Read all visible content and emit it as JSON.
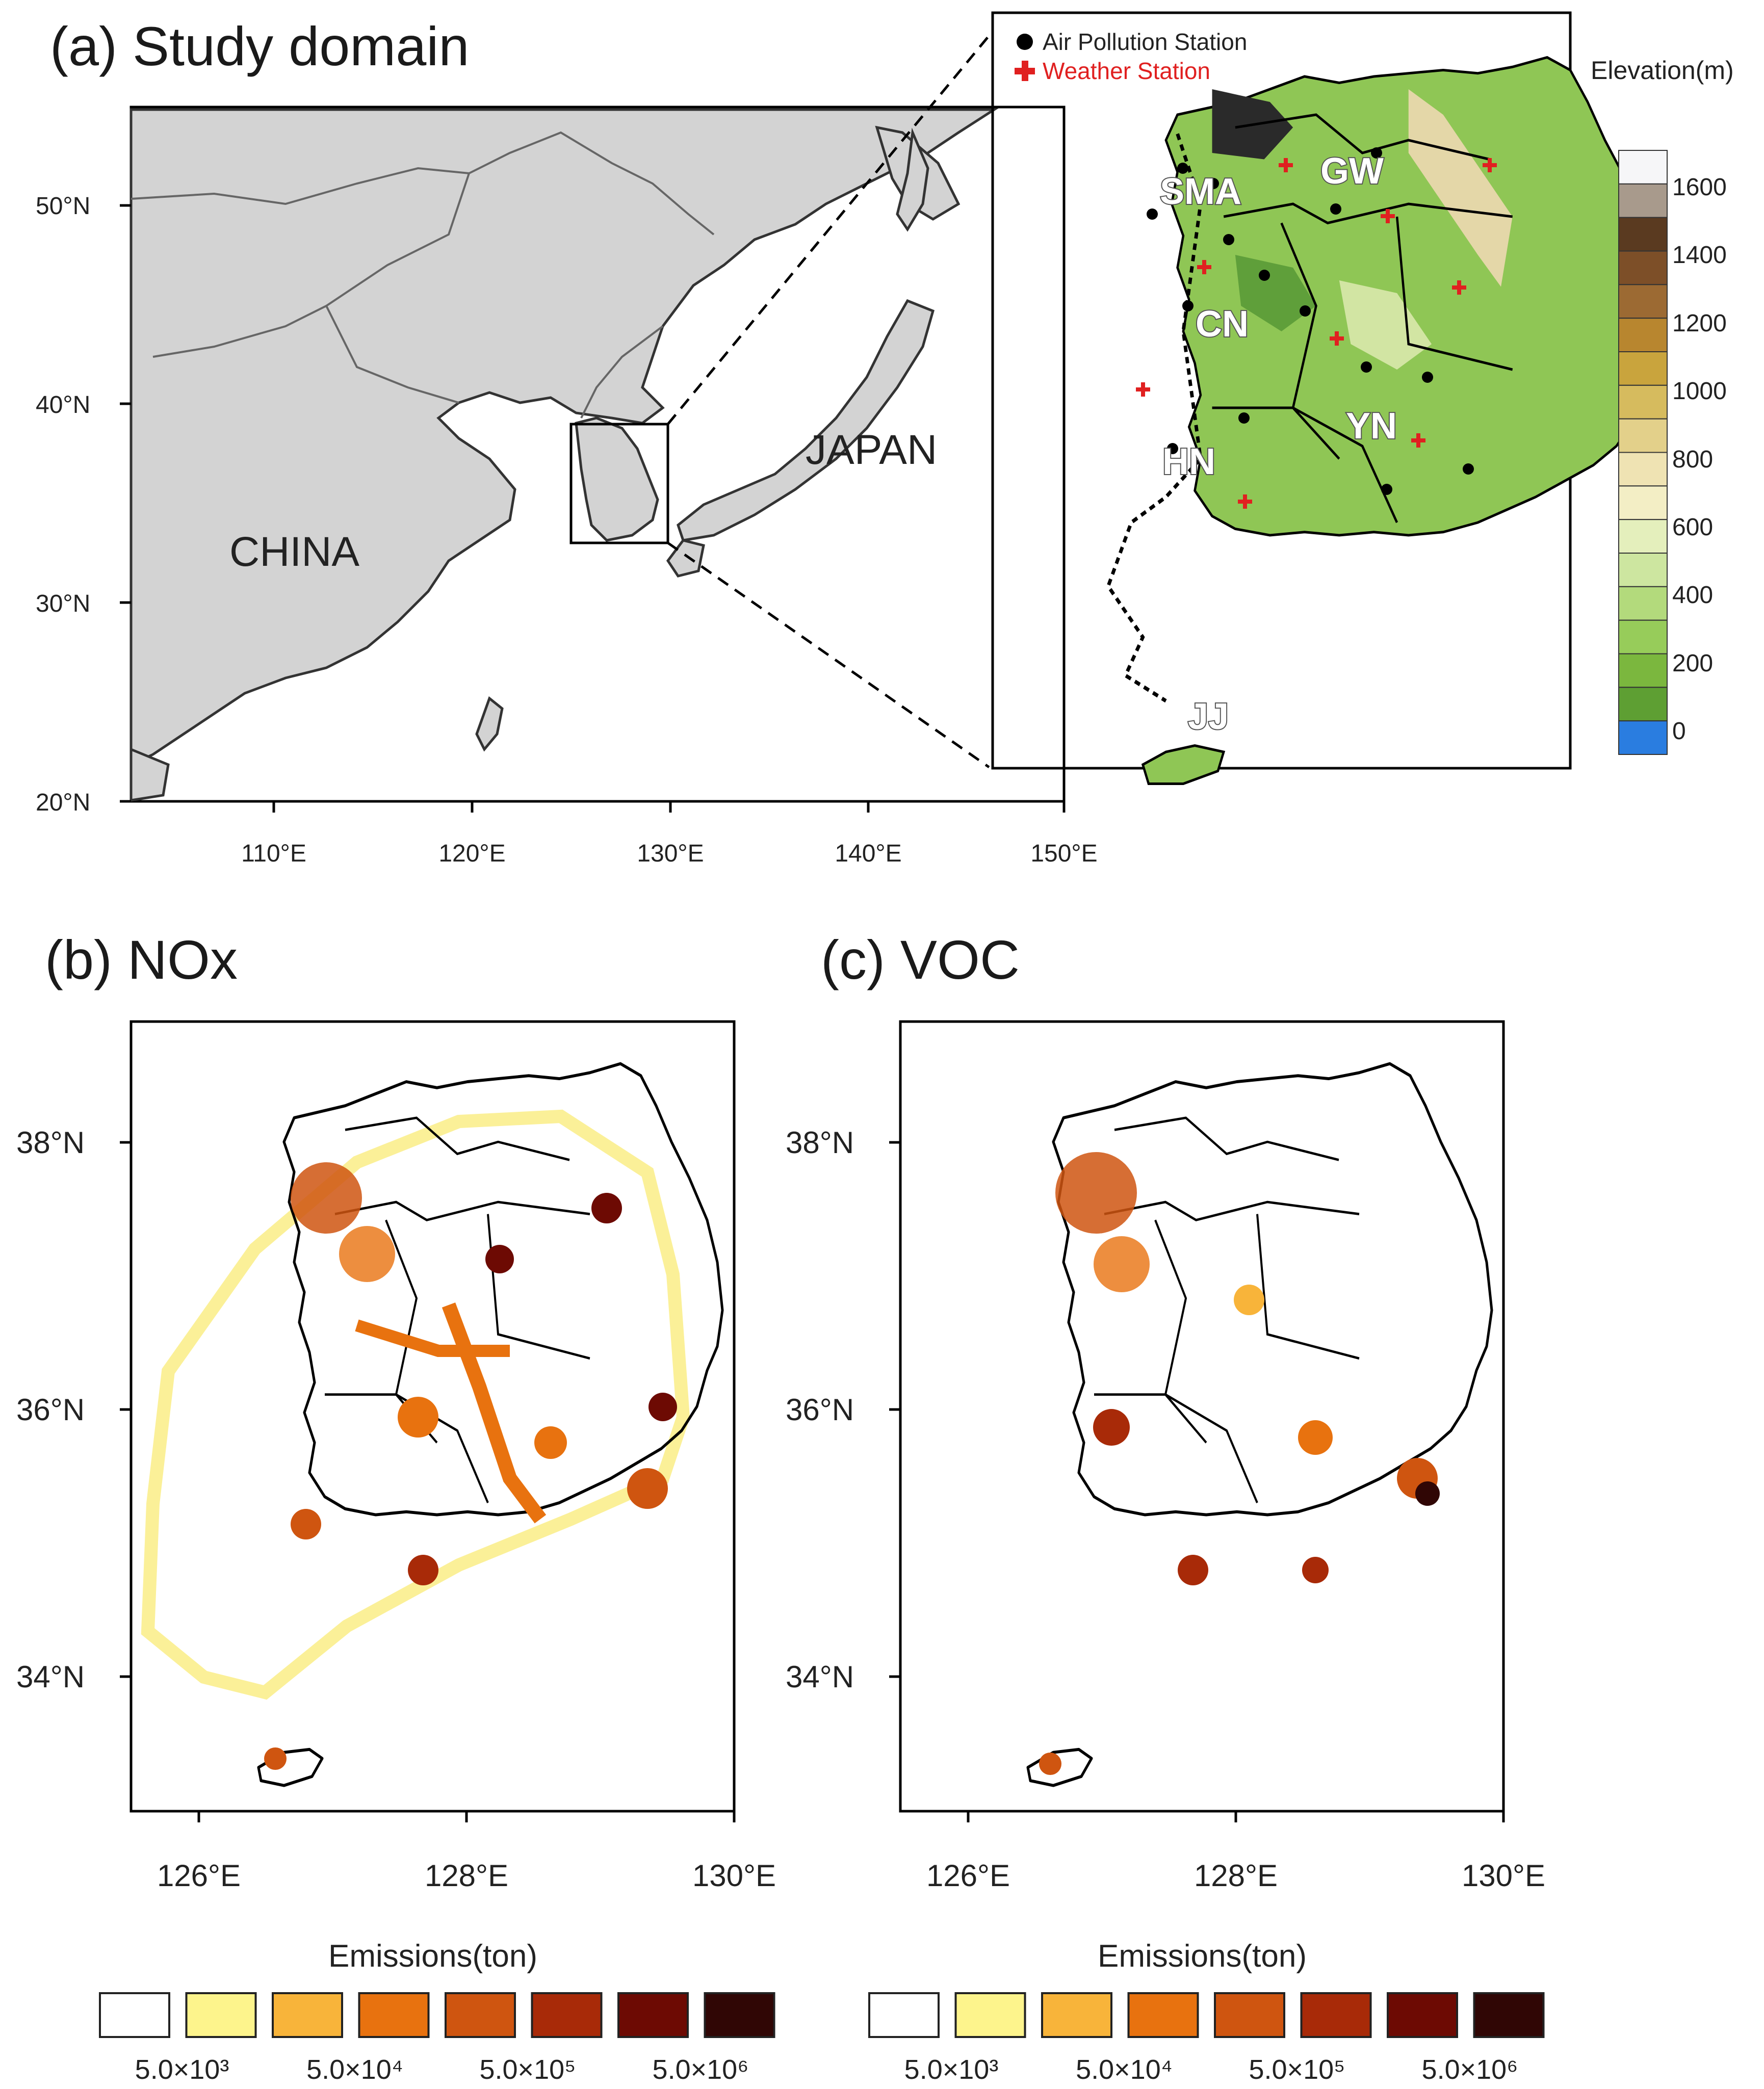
{
  "panels": {
    "a": {
      "title": "(a) Study domain",
      "lat_ticks": [
        "50°N",
        "40°N",
        "30°N",
        "20°N"
      ],
      "lon_ticks": [
        "110°E",
        "120°E",
        "130°E",
        "140°E",
        "150°E"
      ],
      "country_labels": [
        "CHINA",
        "JAPAN"
      ],
      "legend": {
        "air": "Air Pollution Station",
        "weather": "Weather Station"
      },
      "region_labels": [
        "SMA",
        "GW",
        "CN",
        "YN",
        "HN",
        "JJ"
      ],
      "elevation_title": "Elevation(m)",
      "elevation_ticks": [
        "1600",
        "1400",
        "1200",
        "1000",
        "800",
        "600",
        "400",
        "200",
        "0"
      ],
      "elevation_colors": [
        "#f6f6f8",
        "#a89a8c",
        "#5a3a20",
        "#7d4f28",
        "#9c6a33",
        "#b8862f",
        "#c9a43d",
        "#d6bb5e",
        "#e3d08a",
        "#efe3b3",
        "#f3eec5",
        "#e4efbc",
        "#cde6a0",
        "#b3da7c",
        "#97cc5a",
        "#7bb73e",
        "#5e9f33",
        "#2a7de0"
      ]
    },
    "b": {
      "title": "(b) NOx"
    },
    "c": {
      "title": "(c) VOC"
    }
  },
  "emission_maps": {
    "lat_ticks": [
      "38°N",
      "36°N",
      "34°N"
    ],
    "lon_ticks": [
      "126°E",
      "128°E",
      "130°E"
    ],
    "legend_title": "Emissions(ton)",
    "legend_colors": [
      "#ffffff",
      "#fdf48c",
      "#f8b43a",
      "#e8720f",
      "#cf5510",
      "#a82a08",
      "#6d0a03",
      "#300605"
    ],
    "legend_labels": [
      "5.0×10³",
      "5.0×10⁴",
      "5.0×10⁵",
      "5.0×10⁶"
    ]
  }
}
